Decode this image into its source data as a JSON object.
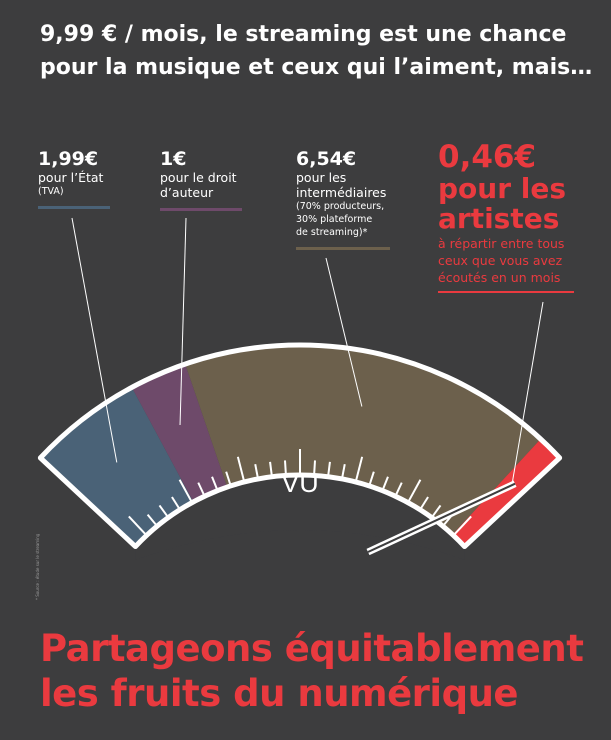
{
  "headline": {
    "line1": "9,99 € / mois, le streaming est une chance",
    "line2": "pour la musique et ceux qui l’aiment, mais…"
  },
  "chart_data": {
    "type": "gauge",
    "total": 9.99,
    "unit": "€",
    "center_label": "VU",
    "segments": [
      {
        "amount": "1,99€",
        "value": 1.99,
        "label": "pour l’État",
        "detail": "(TVA)",
        "color": "#4a6277"
      },
      {
        "amount": "1€",
        "value": 1.0,
        "label": "pour le droit d’auteur",
        "detail": "",
        "color": "#6e4a6a"
      },
      {
        "amount": "6,54€",
        "value": 6.54,
        "label": "pour les intermédiaires",
        "detail": "(70% producteurs, 30% plateforme de streaming)*",
        "color": "#6c604c"
      },
      {
        "amount": "0,46€",
        "value": 0.46,
        "label": "pour les artistes",
        "detail": "à répartir entre tous ceux que vous avez écoutés en un mois",
        "color": "#ea3a3f"
      }
    ]
  },
  "labels": {
    "etat_line1": "pour l’État",
    "etat_line2": "(TVA)",
    "auteur_line1": "pour le droit",
    "auteur_line2": "d’auteur",
    "inter_line1": "pour les",
    "inter_line2": "intermédiaires",
    "inter_line3": "(70% producteurs,",
    "inter_line4": "30% plateforme",
    "inter_line5": "de streaming)*",
    "art_line1": "pour les",
    "art_line2": "artistes",
    "art_line3": "à répartir entre tous",
    "art_line4": "ceux que vous avez",
    "art_line5": "écoutés en un mois"
  },
  "footer": {
    "line1": "Partageons équitablement",
    "line2": "les fruits du numérique"
  },
  "credit": "* Source : étude sur le streaming"
}
